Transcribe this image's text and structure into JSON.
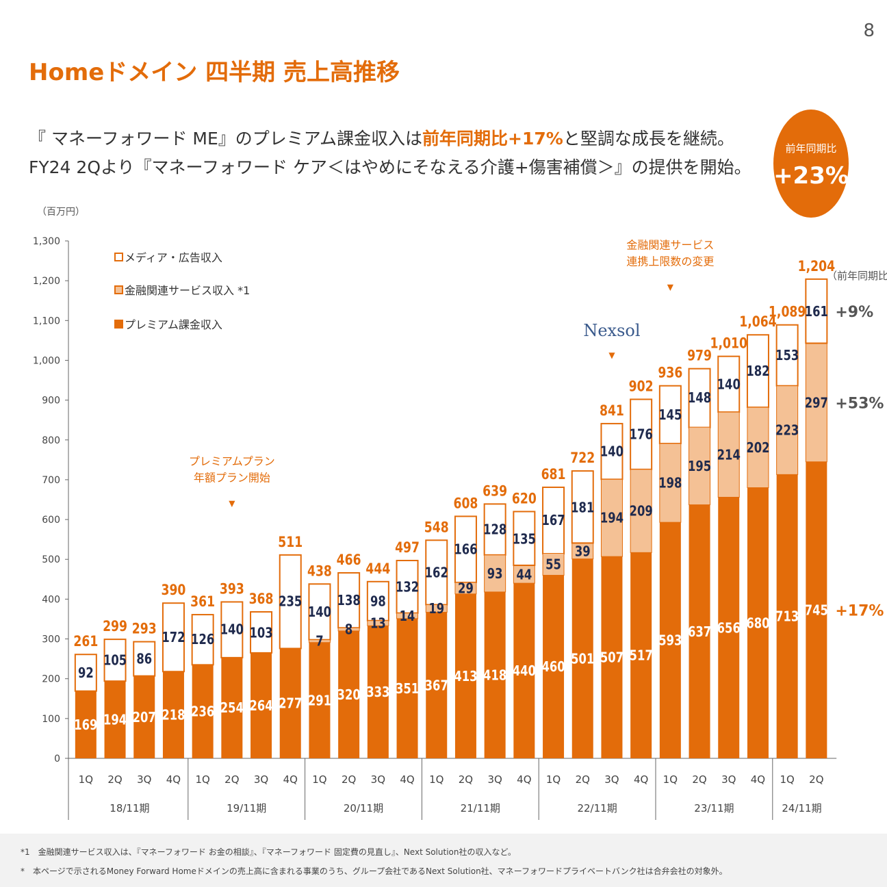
{
  "page_number": "8",
  "title": "Homeドメイン 四半期 売上高推移",
  "subtitle": {
    "line1_a": "『 マネーフォワード ME』のプレミアム課金収入は",
    "line1_b": "前年同期比+17%",
    "line1_c": "と堅調な成長を継続。",
    "line2": "FY24 2Qより『マネーフォワード ケア＜はやめにそなえる介護+傷害補償＞』の提供を開始。"
  },
  "yoy_badge": {
    "label": "前年同期比",
    "value": "+23%"
  },
  "colors": {
    "accent": "#E36C0A",
    "premium": "#E36C0A",
    "financial": "#F4C195",
    "media": "#FFFFFF",
    "label_dark": "#1F2A4D",
    "nexsol": "#3A5A8C"
  },
  "footnotes": [
    "*1　金融関連サービス収入は、『マネーフォワード お金の相談』、『マネーフォワード 固定費の見直し』、Next Solution社の収入など。",
    "*　本ページで示されるMoney Forward Homeドメインの売上高に含まれる事業のうち、グループ会社であるNext Solution社、マネーフォワードプライベートバンク社は合弁会社の対象外。"
  ],
  "chart_data": {
    "type": "bar",
    "stacked": true,
    "ylabel": "（百万円）",
    "ylim": [
      0,
      1300
    ],
    "yticks": [
      "0",
      "100",
      "200",
      "300",
      "400",
      "500",
      "600",
      "700",
      "800",
      "900",
      "1,000",
      "1,100",
      "1,200",
      "1,300"
    ],
    "categories": [
      "1Q",
      "2Q",
      "3Q",
      "4Q",
      "1Q",
      "2Q",
      "3Q",
      "4Q",
      "1Q",
      "2Q",
      "3Q",
      "4Q",
      "1Q",
      "2Q",
      "3Q",
      "4Q",
      "1Q",
      "2Q",
      "3Q",
      "4Q",
      "1Q",
      "2Q",
      "3Q",
      "4Q",
      "1Q",
      "2Q"
    ],
    "periods": [
      {
        "label": "18/11期",
        "count": 4
      },
      {
        "label": "19/11期",
        "count": 4
      },
      {
        "label": "20/11期",
        "count": 4
      },
      {
        "label": "21/11期",
        "count": 4
      },
      {
        "label": "22/11期",
        "count": 4
      },
      {
        "label": "23/11期",
        "count": 4
      },
      {
        "label": "24/11期",
        "count": 2
      }
    ],
    "series": [
      {
        "name": "プレミアム課金収入",
        "values": [
          169,
          194,
          207,
          218,
          236,
          254,
          264,
          277,
          291,
          320,
          333,
          351,
          367,
          413,
          418,
          440,
          460,
          501,
          507,
          517,
          593,
          637,
          656,
          680,
          713,
          745
        ]
      },
      {
        "name": "金融関連サービス収入 *1",
        "values": [
          null,
          null,
          null,
          null,
          null,
          null,
          null,
          null,
          7,
          8,
          13,
          14,
          19,
          29,
          93,
          44,
          55,
          39,
          194,
          209,
          198,
          195,
          214,
          202,
          223,
          297
        ]
      },
      {
        "name": "メディア・広告収入",
        "values": [
          92,
          105,
          86,
          172,
          126,
          140,
          103,
          235,
          140,
          138,
          98,
          132,
          162,
          166,
          128,
          135,
          167,
          181,
          140,
          176,
          145,
          148,
          140,
          182,
          153,
          161
        ]
      }
    ],
    "totals": [
      261,
      299,
      293,
      390,
      361,
      393,
      368,
      511,
      438,
      466,
      444,
      497,
      548,
      608,
      639,
      620,
      681,
      722,
      841,
      902,
      936,
      979,
      1010,
      1064,
      1089,
      1204
    ],
    "total_labels": [
      "261",
      "299",
      "293",
      "390",
      "361",
      "393",
      "368",
      "511",
      "438",
      "466",
      "444",
      "497",
      "548",
      "608",
      "639",
      "620",
      "681",
      "722",
      "841",
      "902",
      "936",
      "979",
      "1,010",
      "1,064",
      "1,089",
      "1,204"
    ],
    "yoy_header": "（前年同期比）",
    "yoy": [
      {
        "series": "メディア・広告収入",
        "label": "+9%"
      },
      {
        "series": "金融関連サービス収入 *1",
        "label": "+53%"
      },
      {
        "series": "プレミアム課金収入",
        "label": "+17%"
      }
    ],
    "annotations": [
      {
        "lines": [
          "プレミアムプラン",
          "年額プラン開始"
        ],
        "bar_index": 5
      },
      {
        "lines": [
          "Nexsol"
        ],
        "bar_index": 18,
        "style": "logo"
      },
      {
        "lines": [
          "金融関連サービス",
          "連携上限数の変更"
        ],
        "bar_index": 20
      }
    ]
  }
}
